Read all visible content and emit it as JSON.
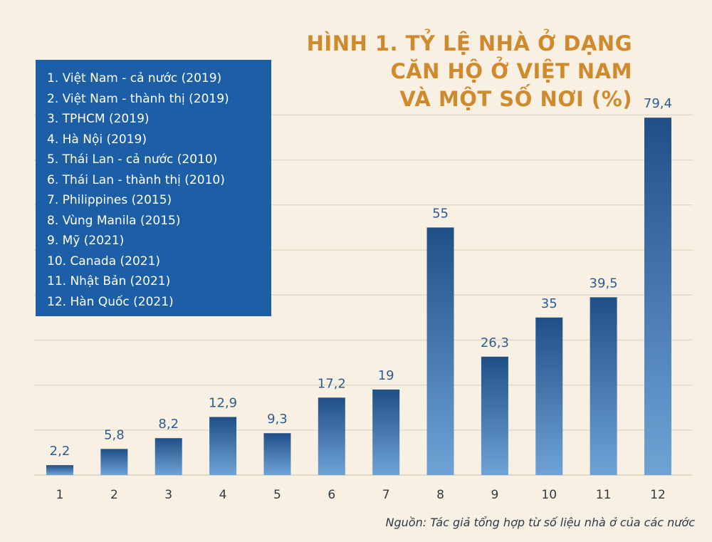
{
  "title_lines": [
    "HÌNH 1. TỶ LỆ NHÀ Ở DẠNG",
    "CĂN HỘ Ở VIỆT NAM",
    "VÀ MỘT SỐ NƠI (%)"
  ],
  "legend_items": [
    "1. Việt Nam - cả nước (2019)",
    "2. Việt Nam - thành thị (2019)",
    "3. TPHCM (2019)",
    "4. Hà Nội (2019)",
    "5. Thái Lan - cả nước (2010)",
    "6. Thái Lan - thành thị (2010)",
    "7. Philippines (2015)",
    "8. Vùng Manila (2015)",
    "9. Mỹ (2021)",
    "10. Canada (2021)",
    "11. Nhật Bản (2021)",
    "12. Hàn Quốc (2021)"
  ],
  "source": "Nguồn: Tác giả tổng hợp từ số liệu nhà ở của các nước",
  "colors": {
    "background": "#f7f0e3",
    "title": "#d08a2e",
    "legend_box": "#1d5fa6",
    "bar_top": "#1f4f86",
    "bar_bottom": "#6fa3d6",
    "value_label": "#2e5d93"
  },
  "chart_data": {
    "type": "bar",
    "categories": [
      "1",
      "2",
      "3",
      "4",
      "5",
      "6",
      "7",
      "8",
      "9",
      "10",
      "11",
      "12"
    ],
    "values": [
      2.2,
      5.8,
      8.2,
      12.9,
      9.3,
      17.2,
      19,
      55,
      26.3,
      35,
      39.5,
      79.4
    ],
    "value_labels": [
      "2,2",
      "5,8",
      "8,2",
      "12,9",
      "9,3",
      "17,2",
      "19",
      "55",
      "26,3",
      "35",
      "39,5",
      "79,4"
    ],
    "ylim": [
      0,
      80
    ],
    "grid": true,
    "legend": "top-left box"
  }
}
